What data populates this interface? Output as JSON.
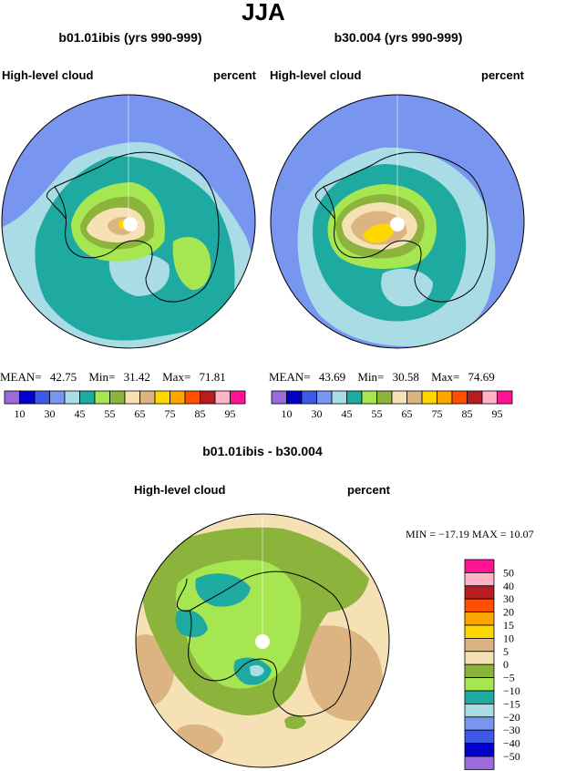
{
  "page": {
    "title": "JJA"
  },
  "colors": {
    "palette": [
      "#9b6bdc",
      "#0000c8",
      "#3c5ae6",
      "#7896f0",
      "#aadce6",
      "#1eaaa0",
      "#a6e650",
      "#8cb43c",
      "#f5e1b4",
      "#dcb482",
      "#ffd700",
      "#ffa500",
      "#ff5000",
      "#b41e1e",
      "#ffb4c8",
      "#ff1496"
    ],
    "contour": {
      "c10": "#7896f0",
      "c30": "#7896f0",
      "c45": "#aadce6",
      "c55": "#1eaaa0",
      "c60": "#a6e650",
      "c65": "#8cb43c",
      "c70": "#f5e1b4",
      "c75": "#dcb482",
      "c80": "#ffd700"
    },
    "diff": {
      "dm20": "#7896f0",
      "dm15": "#aadce6",
      "dm10": "#1eaaa0",
      "dm5": "#a6e650",
      "d0": "#8cb43c",
      "d5": "#f5e1b4",
      "d10": "#dcb482",
      "d15": "#ffd700"
    },
    "land_outline": "#000000",
    "pole_hole": "#ffffff"
  },
  "chart_data": [
    {
      "type": "heatmap",
      "projection": "polar-stereographic (south pole)",
      "title": "b01.01ibis (yrs 990-999)",
      "left_label": "High-level cloud",
      "right_label": "percent",
      "stats": {
        "mean_label": "MEAN=",
        "mean": "42.75",
        "min_label": "Min=",
        "min": "31.42",
        "max_label": "Max=",
        "max": "71.81"
      },
      "colorbar_levels": [
        10,
        15,
        20,
        25,
        30,
        35,
        40,
        45,
        50,
        55,
        60,
        65,
        70,
        75,
        80,
        85,
        90,
        95
      ],
      "colorbar_labels": [
        "10",
        "30",
        "45",
        "55",
        "65",
        "75",
        "85",
        "95"
      ]
    },
    {
      "type": "heatmap",
      "projection": "polar-stereographic (south pole)",
      "title": "b30.004 (yrs 990-999)",
      "left_label": "High-level cloud",
      "right_label": "percent",
      "stats": {
        "mean_label": "MEAN=",
        "mean": "43.69",
        "min_label": "Min=",
        "min": "30.58",
        "max_label": "Max=",
        "max": "74.69"
      },
      "colorbar_levels": [
        10,
        15,
        20,
        25,
        30,
        35,
        40,
        45,
        50,
        55,
        60,
        65,
        70,
        75,
        80,
        85,
        90,
        95
      ],
      "colorbar_labels": [
        "10",
        "30",
        "45",
        "55",
        "65",
        "75",
        "85",
        "95"
      ]
    },
    {
      "type": "heatmap",
      "projection": "polar-stereographic (south pole)",
      "title": "b01.01ibis - b30.004",
      "left_label": "High-level cloud",
      "right_label": "percent",
      "stats": {
        "text": "MIN = −17.19  MAX =  10.07"
      },
      "colorbar_levels": [
        "50",
        "40",
        "30",
        "20",
        "15",
        "10",
        "5",
        "0",
        "−5",
        "−10",
        "−15",
        "−20",
        "−30",
        "−40",
        "−50"
      ],
      "colorbar_colors": [
        "#ff1496",
        "#ffb4c8",
        "#b41e1e",
        "#ff5000",
        "#ffa500",
        "#ffd700",
        "#dcb482",
        "#f5e1b4",
        "#8cb43c",
        "#a6e650",
        "#1eaaa0",
        "#aadce6",
        "#7896f0",
        "#3c5ae6",
        "#0000c8",
        "#9b6bdc"
      ]
    }
  ]
}
